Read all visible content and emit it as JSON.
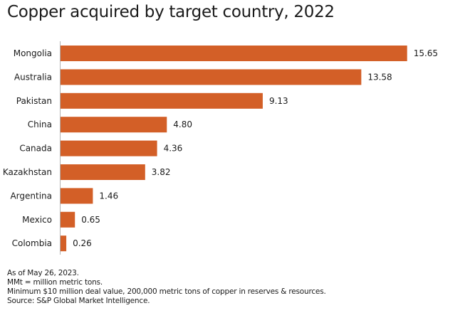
{
  "chart_data": {
    "type": "bar",
    "orientation": "horizontal",
    "title": "Copper acquired by target country, 2022",
    "categories": [
      "Mongolia",
      "Australia",
      "Pakistan",
      "China",
      "Canada",
      "Kazakhstan",
      "Argentina",
      "Mexico",
      "Colombia"
    ],
    "values": [
      15.65,
      13.58,
      9.13,
      4.8,
      4.36,
      3.82,
      1.46,
      0.65,
      0.26
    ],
    "value_labels": [
      "15.65",
      "13.58",
      "9.13",
      "4.80",
      "4.36",
      "3.82",
      "1.46",
      "0.65",
      "0.26"
    ],
    "xlabel": "",
    "ylabel": "",
    "xlim": [
      0,
      18
    ],
    "grid": false,
    "legend": "none",
    "bar_color": "#D35F27",
    "axis_color": "#b3b3b3",
    "unit": "MMt"
  },
  "footnotes": [
    "As of May 26, 2023.",
    "MMt = million metric tons.",
    "Minimum $10 million deal value, 200,000 metric tons of copper in reserves & resources.",
    "Source: S&P Global Market Intelligence."
  ]
}
